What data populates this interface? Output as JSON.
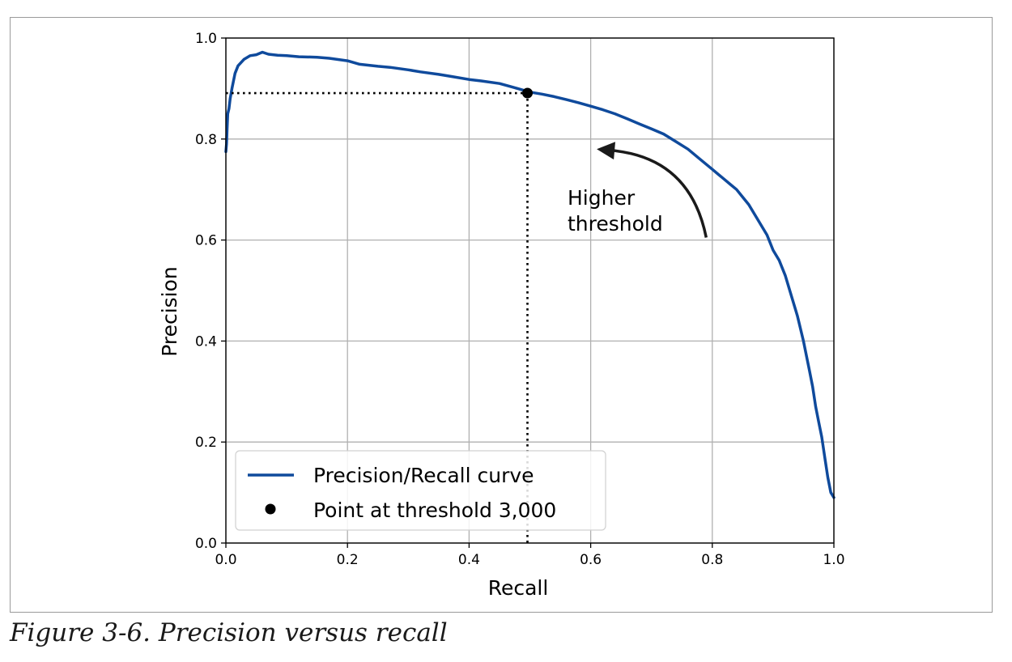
{
  "caption": "Figure 3-6. Precision versus recall",
  "chart_data": {
    "type": "line",
    "xlabel": "Recall",
    "ylabel": "Precision",
    "xlim": [
      0,
      1
    ],
    "ylim": [
      0,
      1
    ],
    "xticks": [
      "0.0",
      "0.2",
      "0.4",
      "0.6",
      "0.8",
      "1.0"
    ],
    "yticks": [
      "0.0",
      "0.2",
      "0.4",
      "0.6",
      "0.8",
      "1.0"
    ],
    "grid": true,
    "legend_position": "lower-left",
    "series": [
      {
        "name": "Precision/Recall curve",
        "color": "#0f4a9c",
        "x": [
          1.0,
          0.995,
          0.99,
          0.985,
          0.98,
          0.975,
          0.97,
          0.965,
          0.96,
          0.955,
          0.95,
          0.94,
          0.93,
          0.92,
          0.91,
          0.9,
          0.89,
          0.88,
          0.87,
          0.86,
          0.85,
          0.84,
          0.83,
          0.82,
          0.81,
          0.8,
          0.78,
          0.76,
          0.74,
          0.72,
          0.7,
          0.68,
          0.66,
          0.64,
          0.62,
          0.6,
          0.58,
          0.56,
          0.54,
          0.52,
          0.5,
          0.48,
          0.45,
          0.42,
          0.4,
          0.37,
          0.35,
          0.32,
          0.3,
          0.27,
          0.25,
          0.22,
          0.2,
          0.17,
          0.15,
          0.12,
          0.1,
          0.085,
          0.07,
          0.06,
          0.05,
          0.04,
          0.03,
          0.02,
          0.015,
          0.01,
          0.007,
          0.005,
          0.003,
          0.002,
          0.001,
          0.0
        ],
        "y": [
          0.09,
          0.1,
          0.13,
          0.17,
          0.21,
          0.24,
          0.27,
          0.31,
          0.34,
          0.37,
          0.4,
          0.45,
          0.49,
          0.53,
          0.56,
          0.58,
          0.61,
          0.63,
          0.65,
          0.67,
          0.685,
          0.7,
          0.71,
          0.72,
          0.73,
          0.74,
          0.76,
          0.78,
          0.795,
          0.81,
          0.82,
          0.83,
          0.84,
          0.85,
          0.858,
          0.865,
          0.872,
          0.878,
          0.884,
          0.889,
          0.893,
          0.9,
          0.91,
          0.915,
          0.918,
          0.924,
          0.928,
          0.933,
          0.937,
          0.942,
          0.944,
          0.948,
          0.955,
          0.96,
          0.962,
          0.963,
          0.965,
          0.966,
          0.968,
          0.972,
          0.967,
          0.965,
          0.958,
          0.945,
          0.93,
          0.9,
          0.88,
          0.86,
          0.85,
          0.82,
          0.79,
          0.775
        ]
      },
      {
        "name": "Point at threshold 3,000",
        "color": "#000000",
        "x": [
          0.496
        ],
        "y": [
          0.891
        ]
      }
    ],
    "reference_lines": {
      "x": 0.496,
      "y": 0.891,
      "style": "dotted"
    },
    "annotation": {
      "line1": "Higher",
      "line2": "threshold",
      "arrow_from": [
        0.79,
        0.605
      ],
      "arrow_to": [
        0.61,
        0.78
      ]
    }
  }
}
